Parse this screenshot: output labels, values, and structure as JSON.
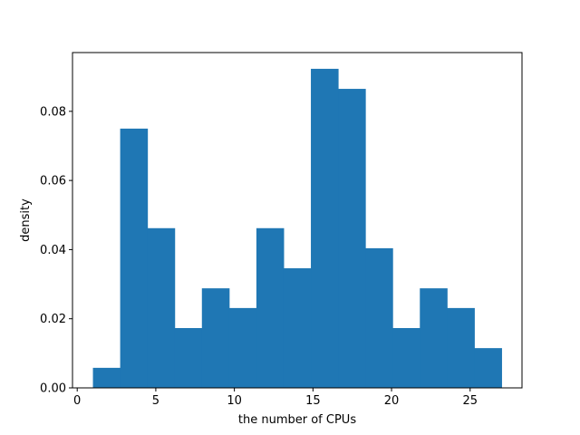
{
  "chart_data": {
    "type": "bar",
    "title": "",
    "xlabel": "the number of CPUs",
    "ylabel": "density",
    "bin_edges": [
      1.0,
      2.733,
      4.467,
      6.2,
      7.933,
      9.667,
      11.4,
      13.133,
      14.867,
      16.6,
      18.333,
      20.067,
      21.8,
      23.533,
      25.267,
      27.0
    ],
    "values": [
      0.0058,
      0.075,
      0.0462,
      0.0173,
      0.0288,
      0.0231,
      0.0462,
      0.0346,
      0.0923,
      0.0865,
      0.0404,
      0.0173,
      0.0288,
      0.0231,
      0.0115
    ],
    "xlim": [
      -0.3,
      28.3
    ],
    "ylim": [
      0,
      0.097
    ],
    "xticks": [
      0,
      5,
      10,
      15,
      20,
      25
    ],
    "xtick_labels": [
      "0",
      "5",
      "10",
      "15",
      "20",
      "25"
    ],
    "yticks": [
      0,
      0.02,
      0.04,
      0.06,
      0.08
    ],
    "ytick_labels": [
      "0.00",
      "0.02",
      "0.04",
      "0.06",
      "0.08"
    ],
    "bar_color": "#1f77b4",
    "grid": false,
    "legend": "none"
  }
}
